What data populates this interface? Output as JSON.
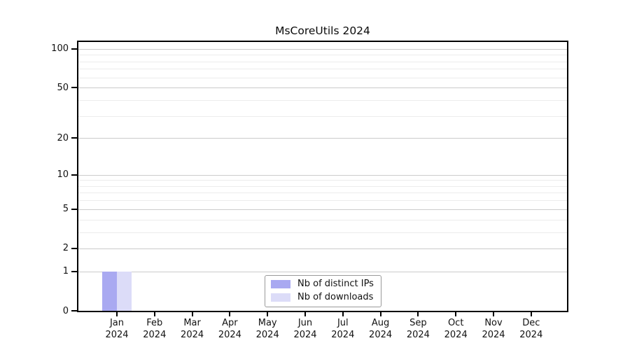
{
  "chart_data": {
    "type": "bar",
    "title": "MsCoreUtils 2024",
    "categories": [
      "Jan",
      "Feb",
      "Mar",
      "Apr",
      "May",
      "Jun",
      "Jul",
      "Aug",
      "Sep",
      "Oct",
      "Nov",
      "Dec"
    ],
    "category_year": "2024",
    "series": [
      {
        "name": "Nb of distinct IPs",
        "color": "#a9a9f1",
        "values": [
          1,
          0,
          0,
          0,
          0,
          0,
          0,
          0,
          0,
          0,
          0,
          0
        ]
      },
      {
        "name": "Nb of downloads",
        "color": "#dcdcf8",
        "values": [
          1,
          0,
          0,
          0,
          0,
          0,
          0,
          0,
          0,
          0,
          0,
          0
        ]
      }
    ],
    "xlabel": "",
    "ylabel": "",
    "y_axis": {
      "scale": "log1p",
      "ylim": [
        0,
        113
      ],
      "major_ticks": [
        0,
        1,
        2,
        5,
        10,
        20,
        50,
        100
      ],
      "minor_ticks": [
        3,
        4,
        6,
        7,
        8,
        9,
        30,
        40,
        60,
        70,
        80,
        90
      ]
    },
    "grid": {
      "on": true,
      "major_color": "#cbcbcb",
      "minor_color": "#ececec"
    },
    "legend": {
      "position": "bottom-center",
      "border_color": "#9a9a9a"
    }
  }
}
